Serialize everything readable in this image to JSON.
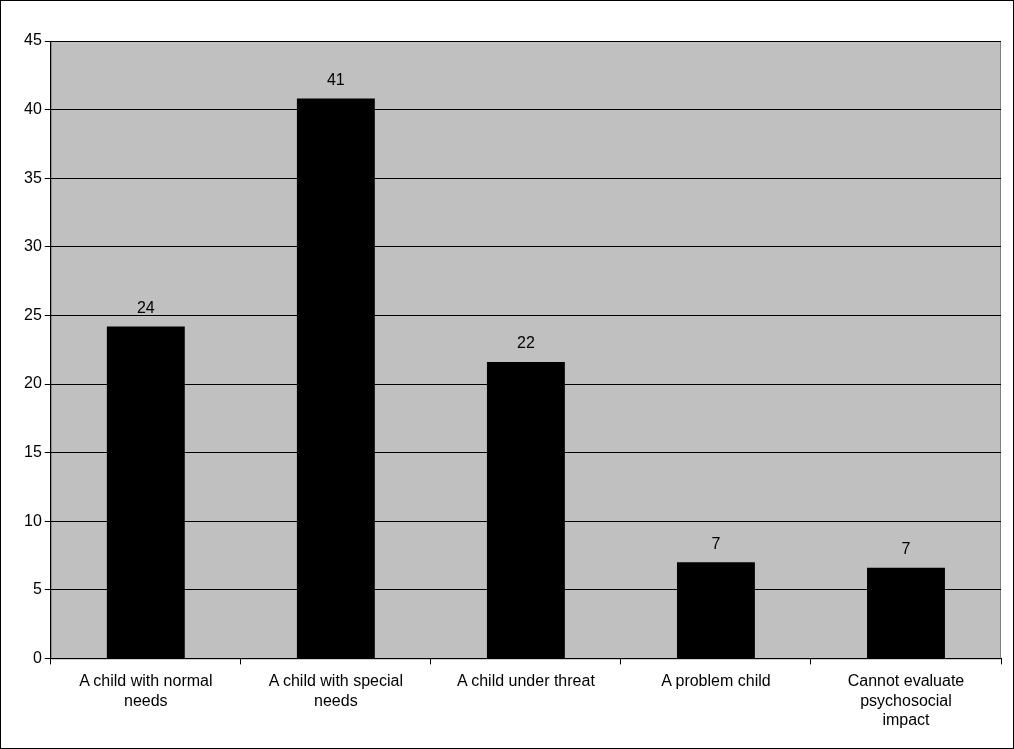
{
  "chart_data": {
    "type": "bar",
    "categories": [
      "A child with normal needs",
      "A child with special needs",
      "A child under threat",
      "A problem child",
      "Cannot evaluate psychosocial impact"
    ],
    "values": [
      24.2,
      40.8,
      21.6,
      7.0,
      6.6
    ],
    "value_labels": [
      "24",
      "41",
      "22",
      "7",
      "7"
    ],
    "color": "#000000",
    "ylim": [
      0,
      45
    ],
    "yticks": [
      0,
      5,
      10,
      15,
      20,
      25,
      30,
      35,
      40,
      45
    ],
    "grid": "y",
    "legend": false
  }
}
